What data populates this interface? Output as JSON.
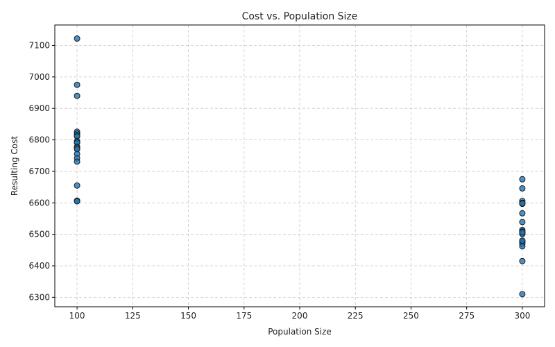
{
  "chart_data": {
    "type": "scatter",
    "title": "Cost vs. Population Size",
    "xlabel": "Population Size",
    "ylabel": "Resulting Cost",
    "xlim": [
      90,
      310
    ],
    "ylim": [
      6270,
      7165
    ],
    "xticks": [
      100,
      125,
      150,
      175,
      200,
      225,
      250,
      275,
      300
    ],
    "yticks": [
      6300,
      6400,
      6500,
      6600,
      6700,
      6800,
      6900,
      7000,
      7100
    ],
    "grid": true,
    "point_color": "#1f77b4",
    "series": [
      {
        "name": "runs",
        "x": [
          100,
          100,
          100,
          100,
          100,
          100,
          100,
          100,
          100,
          100,
          100,
          100,
          100,
          100,
          100,
          100,
          100,
          100,
          100,
          100,
          300,
          300,
          300,
          300,
          300,
          300,
          300,
          300,
          300,
          300,
          300,
          300,
          300,
          300,
          300,
          300,
          300,
          300,
          300,
          300
        ],
        "y": [
          7122,
          6975,
          6940,
          6826,
          6820,
          6815,
          6811,
          6796,
          6792,
          6791,
          6778,
          6775,
          6770,
          6755,
          6742,
          6731,
          6655,
          6607,
          6606,
          6605,
          6675,
          6646,
          6606,
          6597,
          6567,
          6539,
          6514,
          6509,
          6503,
          6501,
          6479,
          6475,
          6470,
          6462,
          6415,
          6310,
          6507,
          6480,
          6600,
          6598
        ]
      }
    ]
  }
}
